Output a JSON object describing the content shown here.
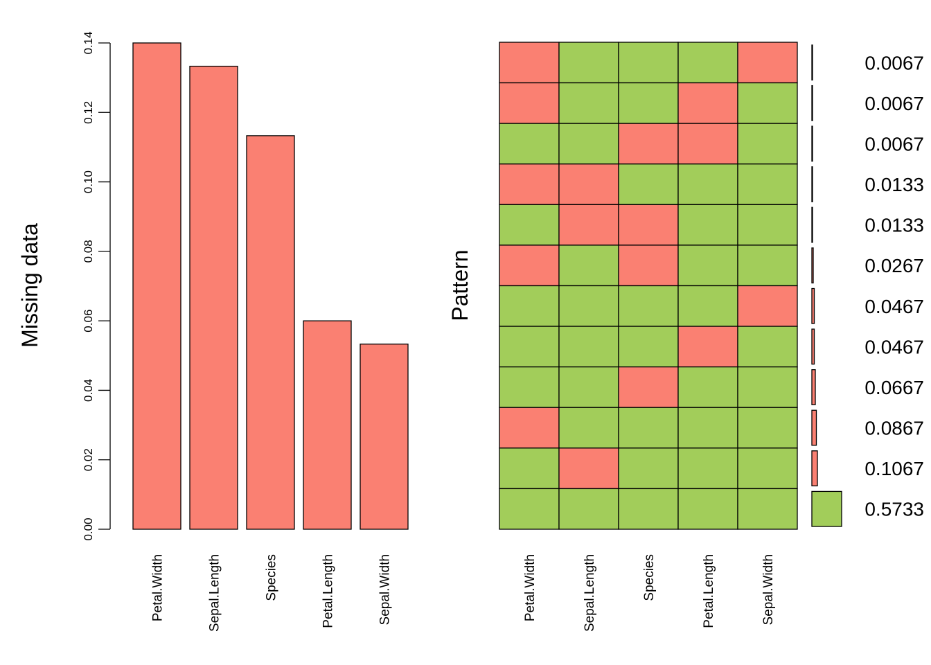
{
  "colors": {
    "missing": "#fa8072",
    "observed": "#a2cd5a",
    "stroke": "#000000"
  },
  "chart_data": [
    {
      "type": "bar",
      "ylabel": "Missing data",
      "ylim": [
        0,
        0.14
      ],
      "yticks": [
        "0.00",
        "0.02",
        "0.04",
        "0.06",
        "0.08",
        "0.10",
        "0.12",
        "0.14"
      ],
      "categories": [
        "Petal.Width",
        "Sepal.Length",
        "Species",
        "Petal.Length",
        "Sepal.Width"
      ],
      "values": [
        0.14,
        0.1333,
        0.1133,
        0.06,
        0.0533
      ]
    },
    {
      "type": "heatmap",
      "ylabel": "Pattern",
      "columns": [
        "Petal.Width",
        "Sepal.Length",
        "Species",
        "Petal.Length",
        "Sepal.Width"
      ],
      "patterns": [
        {
          "proportion": 0.0067,
          "label": "0.0067",
          "missing": [
            1,
            0,
            0,
            0,
            1
          ]
        },
        {
          "proportion": 0.0067,
          "label": "0.0067",
          "missing": [
            1,
            0,
            0,
            1,
            0
          ]
        },
        {
          "proportion": 0.0067,
          "label": "0.0067",
          "missing": [
            0,
            0,
            1,
            1,
            0
          ]
        },
        {
          "proportion": 0.0133,
          "label": "0.0133",
          "missing": [
            1,
            1,
            0,
            0,
            0
          ]
        },
        {
          "proportion": 0.0133,
          "label": "0.0133",
          "missing": [
            0,
            1,
            1,
            0,
            0
          ]
        },
        {
          "proportion": 0.0267,
          "label": "0.0267",
          "missing": [
            1,
            0,
            1,
            0,
            0
          ]
        },
        {
          "proportion": 0.0467,
          "label": "0.0467",
          "missing": [
            0,
            0,
            0,
            0,
            1
          ]
        },
        {
          "proportion": 0.0467,
          "label": "0.0467",
          "missing": [
            0,
            0,
            0,
            1,
            0
          ]
        },
        {
          "proportion": 0.0667,
          "label": "0.0667",
          "missing": [
            0,
            0,
            1,
            0,
            0
          ]
        },
        {
          "proportion": 0.0867,
          "label": "0.0867",
          "missing": [
            1,
            0,
            0,
            0,
            0
          ]
        },
        {
          "proportion": 0.1067,
          "label": "0.1067",
          "missing": [
            0,
            1,
            0,
            0,
            0
          ]
        },
        {
          "proportion": 0.5733,
          "label": "0.5733",
          "missing": [
            0,
            0,
            0,
            0,
            0
          ]
        }
      ]
    }
  ]
}
